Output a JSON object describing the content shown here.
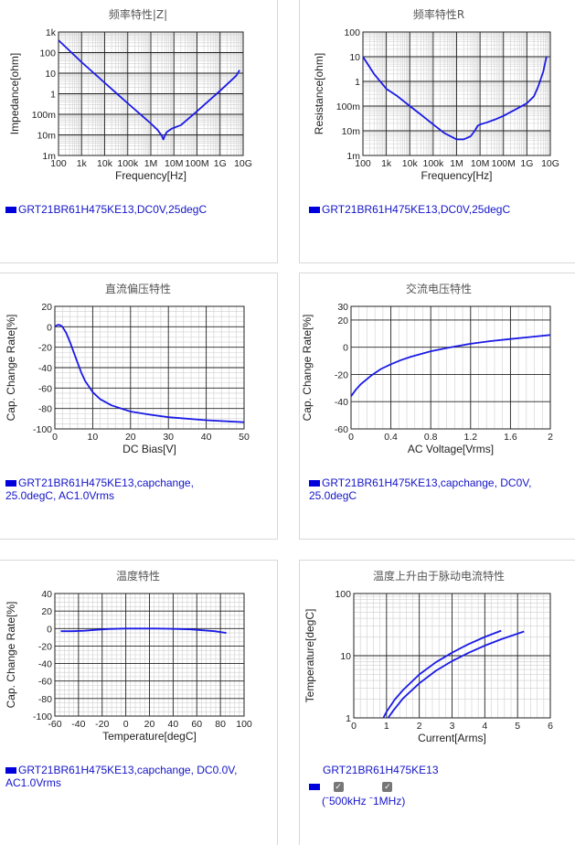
{
  "panels": {
    "p1": {
      "title": "频率特性|Z|",
      "legend": "GRT21BR61H475KE13,DC0V,25degC"
    },
    "p2": {
      "title": "频率特性R",
      "legend": "GRT21BR61H475KE13,DC0V,25degC"
    },
    "p3": {
      "title": "直流偏压特性",
      "legend": "GRT21BR61H475KE13,capchange,\n25.0degC, AC1.0Vrms"
    },
    "p4": {
      "title": "交流电压特性",
      "legend": "GRT21BR61H475KE13,capchange, DC0V,\n25.0degC"
    },
    "p5": {
      "title": "温度特性",
      "legend": "GRT21BR61H475KE13,capchange, DC0.0V,\nAC1.0Vrms"
    },
    "p6": {
      "title": "温度上升由于脉动电流特性",
      "legend": "GRT21BR61H475KE13",
      "checks": [
        "500kHz",
        "1MHz"
      ],
      "check_text": "(ˉ500kHz ˉ1MHz)"
    }
  },
  "colors": {
    "series": "#1a1ae6",
    "legend_text": "#1414c8",
    "grid": "#cfcfcf",
    "major_grid": "#222222"
  },
  "chart_data": [
    {
      "id": "c1",
      "type": "line",
      "title": "频率特性|Z|",
      "xlabel": "Frequency[Hz]",
      "ylabel": "Impedance[ohm]",
      "xscale": "log",
      "yscale": "log",
      "xlim": [
        100,
        10000000000
      ],
      "ylim": [
        0.001,
        1000
      ],
      "xticks": [
        100,
        1000,
        10000,
        100000,
        1000000,
        10000000,
        100000000,
        1000000000,
        10000000000
      ],
      "xticklabels": [
        "100",
        "1k",
        "10k",
        "100k",
        "1M",
        "10M",
        "100M",
        "1G",
        "10G"
      ],
      "yticks": [
        0.001,
        0.01,
        0.1,
        1,
        10,
        100,
        1000
      ],
      "yticklabels": [
        "1m",
        "10m",
        "100m",
        "1",
        "10",
        "100",
        "1k"
      ],
      "series": [
        {
          "x": [
            100,
            1000,
            10000,
            100000,
            1000000,
            2000000,
            3000000,
            3500000,
            4000000,
            5000000,
            8000000,
            20000000,
            100000000,
            1000000000,
            5000000000,
            7000000000
          ],
          "y": [
            400,
            34,
            3.4,
            0.34,
            0.036,
            0.017,
            0.009,
            0.006,
            0.009,
            0.014,
            0.02,
            0.03,
            0.14,
            1.4,
            7.5,
            14
          ]
        }
      ]
    },
    {
      "id": "c2",
      "type": "line",
      "title": "频率特性R",
      "xlabel": "Frequency[Hz]",
      "ylabel": "Resistance[ohm]",
      "xscale": "log",
      "yscale": "log",
      "xlim": [
        100,
        10000000000
      ],
      "ylim": [
        0.001,
        100
      ],
      "xticks": [
        100,
        1000,
        10000,
        100000,
        1000000,
        10000000,
        100000000,
        1000000000,
        10000000000
      ],
      "xticklabels": [
        "100",
        "1k",
        "10k",
        "100k",
        "1M",
        "10M",
        "100M",
        "1G",
        "10G"
      ],
      "yticks": [
        0.001,
        0.01,
        0.1,
        1,
        10,
        100
      ],
      "yticklabels": [
        "1m",
        "10m",
        "100m",
        "1",
        "10",
        "100"
      ],
      "series": [
        {
          "x": [
            100,
            300,
            1000,
            3000,
            10000,
            30000,
            100000,
            300000,
            1000000,
            2000000,
            4000000,
            6000000,
            8000000,
            10000000,
            20000000,
            50000000,
            100000000,
            300000000,
            1000000000,
            2000000000,
            3000000000,
            5000000000,
            6500000000,
            7000000000
          ],
          "y": [
            10,
            2,
            0.5,
            0.25,
            0.1,
            0.045,
            0.018,
            0.008,
            0.0045,
            0.0045,
            0.006,
            0.01,
            0.016,
            0.018,
            0.022,
            0.03,
            0.04,
            0.07,
            0.13,
            0.25,
            0.6,
            2.5,
            8,
            10
          ]
        }
      ]
    },
    {
      "id": "c3",
      "type": "line",
      "title": "直流偏压特性",
      "xlabel": "DC Bias[V]",
      "ylabel": "Cap. Change Rate[%]",
      "xlim": [
        0,
        50
      ],
      "ylim": [
        -100,
        20
      ],
      "xticks": [
        0,
        10,
        20,
        30,
        40,
        50
      ],
      "yticks": [
        20,
        0,
        -20,
        -40,
        -60,
        -80,
        -100
      ],
      "series": [
        {
          "x": [
            0,
            0.5,
            1,
            1.5,
            2,
            3,
            4,
            5,
            6,
            7,
            8,
            10,
            12,
            15,
            20,
            25,
            30,
            40,
            50
          ],
          "y": [
            0,
            1.5,
            2,
            1.5,
            0,
            -6,
            -15,
            -25,
            -35,
            -45,
            -53,
            -64,
            -71,
            -77,
            -83,
            -86,
            -88.5,
            -91.5,
            -93.5
          ]
        }
      ]
    },
    {
      "id": "c4",
      "type": "line",
      "title": "交流电压特性",
      "xlabel": "AC Voltage[Vrms]",
      "ylabel": "Cap. Change Rate[%]",
      "xlim": [
        0,
        2
      ],
      "ylim": [
        -60,
        30
      ],
      "xticks": [
        0,
        0.4,
        0.8,
        1.2,
        1.6,
        2
      ],
      "yticks": [
        30,
        20,
        0,
        -20,
        -40,
        -60
      ],
      "series": [
        {
          "x": [
            0,
            0.05,
            0.1,
            0.2,
            0.3,
            0.4,
            0.5,
            0.6,
            0.8,
            1,
            1.2,
            1.4,
            1.6,
            1.8,
            2
          ],
          "y": [
            -36,
            -31,
            -27,
            -21,
            -16,
            -12.5,
            -9.5,
            -7,
            -3,
            0,
            2.5,
            4.5,
            6,
            7.5,
            9
          ]
        }
      ]
    },
    {
      "id": "c5",
      "type": "line",
      "title": "温度特性",
      "xlabel": "Temperature[degC]",
      "ylabel": "Cap. Change Rate[%]",
      "xlim": [
        -60,
        100
      ],
      "ylim": [
        -100,
        40
      ],
      "xticks": [
        -60,
        -40,
        -20,
        0,
        20,
        40,
        60,
        80,
        100
      ],
      "yticks": [
        40,
        20,
        0,
        -20,
        -40,
        -60,
        -80,
        -100
      ],
      "series": [
        {
          "x": [
            -55,
            -45,
            -35,
            -25,
            -15,
            0,
            15,
            25,
            35,
            45,
            55,
            65,
            75,
            85
          ],
          "y": [
            -3,
            -3,
            -2.5,
            -1.5,
            -0.5,
            0,
            0,
            0,
            -0.2,
            -0.5,
            -1,
            -2,
            -3,
            -5
          ]
        }
      ]
    },
    {
      "id": "c6",
      "type": "line",
      "title": "温度上升由于脉动电流特性",
      "xlabel": "Current[Arms]",
      "ylabel": "Temperature[degC]",
      "xlim": [
        0,
        6
      ],
      "ylim": [
        1,
        100
      ],
      "yscale": "log",
      "xticks": [
        0,
        1,
        2,
        3,
        4,
        5,
        6
      ],
      "yticks": [
        1,
        10,
        100
      ],
      "series": [
        {
          "name": "500kHz",
          "x": [
            0.9,
            1,
            1.25,
            1.5,
            2,
            2.5,
            3,
            3.5,
            4,
            4.5
          ],
          "y": [
            1,
            1.25,
            1.97,
            2.8,
            5,
            7.8,
            11.2,
            15.3,
            20,
            25.3
          ]
        },
        {
          "name": "1MHz",
          "x": [
            1.05,
            1.2,
            1.5,
            2,
            2.5,
            3,
            3.5,
            4,
            4.5,
            5.2
          ],
          "y": [
            1,
            1.3,
            2.05,
            3.6,
            5.7,
            8.2,
            11.1,
            14.5,
            18.4,
            24.5
          ]
        }
      ]
    }
  ]
}
